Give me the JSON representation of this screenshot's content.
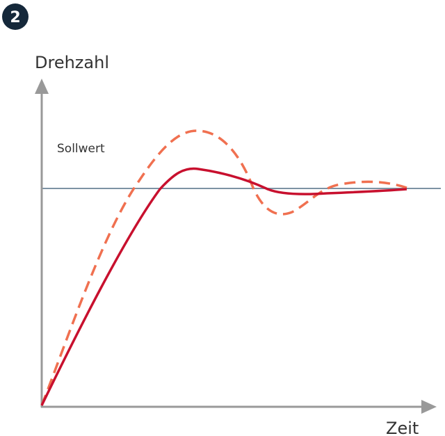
{
  "badge": "2",
  "y_axis_label": "Drehzahl",
  "x_axis_label": "Zeit",
  "reference_label": "Sollwert"
}
